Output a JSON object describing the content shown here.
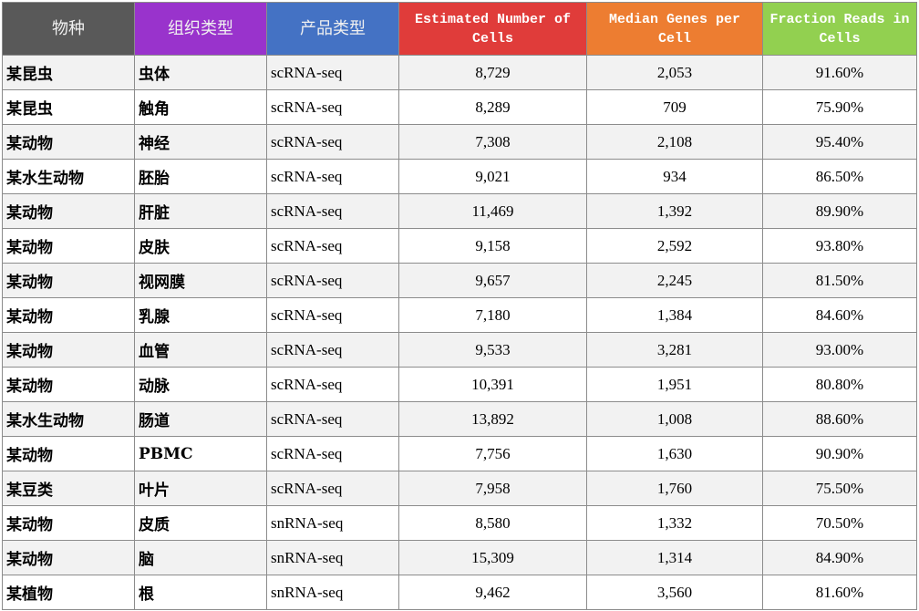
{
  "header": {
    "columns": [
      {
        "label": "物种",
        "color": "#595959"
      },
      {
        "label": "组织类型",
        "color": "#9933cc"
      },
      {
        "label": "产品类型",
        "color": "#4472c4"
      },
      {
        "label": "Estimated Number of Cells",
        "color": "#e03c3a"
      },
      {
        "label": "Median Genes per Cell",
        "color": "#ed7d31"
      },
      {
        "label": "Fraction Reads in Cells",
        "color": "#92d050"
      }
    ]
  },
  "rows": [
    [
      "某昆虫",
      "虫体",
      "scRNA-seq",
      "8,729",
      "2,053",
      "91.60%"
    ],
    [
      "某昆虫",
      "触角",
      "scRNA-seq",
      "8,289",
      "709",
      "75.90%"
    ],
    [
      "某动物",
      "神经",
      "scRNA-seq",
      "7,308",
      "2,108",
      "95.40%"
    ],
    [
      "某水生动物",
      "胚胎",
      "scRNA-seq",
      "9,021",
      "934",
      "86.50%"
    ],
    [
      "某动物",
      "肝脏",
      "scRNA-seq",
      "11,469",
      "1,392",
      "89.90%"
    ],
    [
      "某动物",
      "皮肤",
      "scRNA-seq",
      "9,158",
      "2,592",
      "93.80%"
    ],
    [
      "某动物",
      "视网膜",
      "scRNA-seq",
      "9,657",
      "2,245",
      "81.50%"
    ],
    [
      "某动物",
      "乳腺",
      "scRNA-seq",
      "7,180",
      "1,384",
      "84.60%"
    ],
    [
      "某动物",
      "血管",
      "scRNA-seq",
      "9,533",
      "3,281",
      "93.00%"
    ],
    [
      "某动物",
      "动脉",
      "scRNA-seq",
      "10,391",
      "1,951",
      "80.80%"
    ],
    [
      "某水生动物",
      "肠道",
      "scRNA-seq",
      "13,892",
      "1,008",
      "88.60%"
    ],
    [
      "某动物",
      "PBMC",
      "scRNA-seq",
      "7,756",
      "1,630",
      "90.90%"
    ],
    [
      "某豆类",
      "叶片",
      "scRNA-seq",
      "7,958",
      "1,760",
      "75.50%"
    ],
    [
      "某动物",
      "皮质",
      "snRNA-seq",
      "8,580",
      "1,332",
      "70.50%"
    ],
    [
      "某动物",
      "脑",
      "snRNA-seq",
      "15,309",
      "1,314",
      "84.90%"
    ],
    [
      "某植物",
      "根",
      "snRNA-seq",
      "9,462",
      "3,560",
      "81.60%"
    ]
  ]
}
